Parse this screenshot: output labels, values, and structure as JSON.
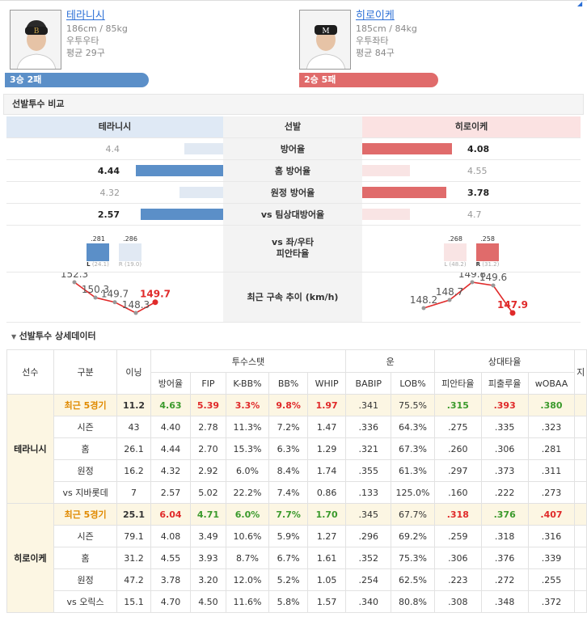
{
  "pitchers": {
    "left": {
      "name": "테라니시",
      "body": "186cm / 85kg",
      "hand": "우투우타",
      "avg_velo": "평균 29구",
      "record": "3승 2패"
    },
    "right": {
      "name": "히로이케",
      "body": "185cm / 84kg",
      "hand": "우투좌타",
      "avg_velo": "평균 84구",
      "record": "2승 5패"
    }
  },
  "compare": {
    "section_title": "선발투수 비교",
    "header_mid": "선발",
    "rows": [
      {
        "label": "방어율",
        "left": "4.4",
        "right": "4.08",
        "left_fill": 0.4,
        "right_fill": 0.85,
        "left_win": false,
        "right_win": true
      },
      {
        "label": "홈 방어율",
        "left": "4.44",
        "right": "4.55",
        "left_fill": 0.9,
        "right_fill": 0.45,
        "left_win": true,
        "right_win": false
      },
      {
        "label": "원정 방어율",
        "left": "4.32",
        "right": "3.78",
        "left_fill": 0.45,
        "right_fill": 0.8,
        "left_win": false,
        "right_win": true
      },
      {
        "label": "vs 팀상대방어율",
        "left": "2.57",
        "right": "4.7",
        "left_fill": 0.85,
        "right_fill": 0.45,
        "left_win": true,
        "right_win": false
      }
    ],
    "splits_label_1": "vs 좌/우타",
    "splits_label_2": "피안타율",
    "splits": {
      "left": {
        "L": {
          "avg": ".281",
          "ab": "(24.1)",
          "tag": "L"
        },
        "R": {
          "avg": ".286",
          "ab": "(19.0)",
          "tag": "R"
        }
      },
      "right": {
        "L": {
          "avg": ".268",
          "ab": "(48.2)",
          "tag": "L"
        },
        "R": {
          "avg": ".258",
          "ab": "(31.2)",
          "tag": "R"
        }
      }
    },
    "velo_label": "최근 구속 추이 (km/h)",
    "velo_left": [
      "152.3",
      "150.3",
      "149.7",
      "148.3",
      "149.7"
    ],
    "velo_right": [
      "148.2",
      "148.7",
      "149.8",
      "149.6",
      "147.9"
    ]
  },
  "detail": {
    "section_title": "선발투수 상세데이터",
    "headers": {
      "player": "선수",
      "category": "구분",
      "ip": "이닝",
      "group_pitching": "투수스탯",
      "group_luck": "운",
      "group_opp": "상대타율",
      "cols": [
        "방어율",
        "FIP",
        "K-BB%",
        "BB%",
        "WHIP",
        "BABIP",
        "LOB%",
        "피안타율",
        "피출루율",
        "wOBAA",
        "지"
      ]
    },
    "left_rows": [
      {
        "cat": "최근 5경기",
        "ip": "11.2",
        "era": "4.63",
        "fip": "5.39",
        "kbb": "3.3%",
        "bb": "9.8%",
        "whip": "1.97",
        "babip": ".341",
        "lob": "75.5%",
        "avg": ".315",
        "obp": ".393",
        "woba": ".380"
      },
      {
        "cat": "시즌",
        "ip": "43",
        "era": "4.40",
        "fip": "2.78",
        "kbb": "11.3%",
        "bb": "7.2%",
        "whip": "1.47",
        "babip": ".336",
        "lob": "64.3%",
        "avg": ".275",
        "obp": ".335",
        "woba": ".323"
      },
      {
        "cat": "홈",
        "ip": "26.1",
        "era": "4.44",
        "fip": "2.70",
        "kbb": "15.3%",
        "bb": "6.3%",
        "whip": "1.29",
        "babip": ".321",
        "lob": "67.3%",
        "avg": ".260",
        "obp": ".306",
        "woba": ".281"
      },
      {
        "cat": "원정",
        "ip": "16.2",
        "era": "4.32",
        "fip": "2.92",
        "kbb": "6.0%",
        "bb": "8.4%",
        "whip": "1.74",
        "babip": ".355",
        "lob": "61.3%",
        "avg": ".297",
        "obp": ".373",
        "woba": ".311"
      },
      {
        "cat": "vs 지바롯데",
        "ip": "7",
        "era": "2.57",
        "fip": "5.02",
        "kbb": "22.2%",
        "bb": "7.4%",
        "whip": "0.86",
        "babip": ".133",
        "lob": "125.0%",
        "avg": ".160",
        "obp": ".222",
        "woba": ".273"
      }
    ],
    "right_rows": [
      {
        "cat": "최근 5경기",
        "ip": "25.1",
        "era": "6.04",
        "fip": "4.71",
        "kbb": "6.0%",
        "bb": "7.7%",
        "whip": "1.70",
        "babip": ".345",
        "lob": "67.7%",
        "avg": ".318",
        "obp": ".376",
        "woba": ".407"
      },
      {
        "cat": "시즌",
        "ip": "79.1",
        "era": "4.08",
        "fip": "3.49",
        "kbb": "10.6%",
        "bb": "5.9%",
        "whip": "1.27",
        "babip": ".296",
        "lob": "69.2%",
        "avg": ".259",
        "obp": ".318",
        "woba": ".316"
      },
      {
        "cat": "홈",
        "ip": "31.2",
        "era": "4.55",
        "fip": "3.93",
        "kbb": "8.7%",
        "bb": "6.7%",
        "whip": "1.61",
        "babip": ".352",
        "lob": "75.3%",
        "avg": ".306",
        "obp": ".376",
        "woba": ".339"
      },
      {
        "cat": "원정",
        "ip": "47.2",
        "era": "3.78",
        "fip": "3.20",
        "kbb": "12.0%",
        "bb": "5.2%",
        "whip": "1.05",
        "babip": ".254",
        "lob": "62.5%",
        "avg": ".223",
        "obp": ".272",
        "woba": ".255"
      },
      {
        "cat": "vs 오릭스",
        "ip": "15.1",
        "era": "4.70",
        "fip": "4.50",
        "kbb": "11.6%",
        "bb": "5.8%",
        "whip": "1.57",
        "babip": ".340",
        "lob": "80.8%",
        "avg": ".308",
        "obp": ".348",
        "woba": ".372"
      }
    ]
  },
  "colors": {
    "left_accent": "#5b8fc8",
    "right_accent": "#e06b6b",
    "good": "#3b9a2c",
    "bad": "#e02a2a",
    "recent": "#e08a00"
  }
}
